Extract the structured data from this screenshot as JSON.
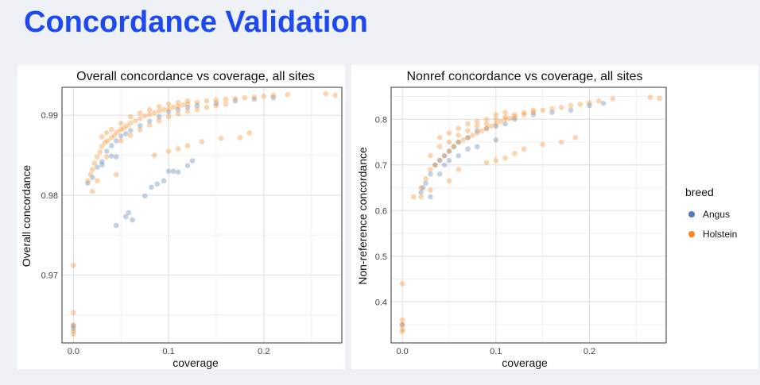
{
  "slide": {
    "title": "Concordance Validation"
  },
  "colors": {
    "Angus": "#4f7fb3",
    "Holstein": "#f7861c",
    "title": "#1f49f0"
  },
  "chart_data": [
    {
      "type": "scatter",
      "title": "Overall concordance vs coverage, all sites",
      "xlabel": "coverage",
      "ylabel": "Overall concordance",
      "xlim": [
        -0.012,
        0.282
      ],
      "ylim": [
        0.9615,
        0.9935
      ],
      "xticks": [
        0.0,
        0.1,
        0.2
      ],
      "xtick_labels": [
        "0.0",
        "0.1",
        "0.2"
      ],
      "yticks": [
        0.97,
        0.98,
        0.99
      ],
      "ytick_labels": [
        "0.97",
        "0.98",
        "0.99"
      ],
      "grid": true,
      "series": [
        {
          "name": "Angus",
          "color": "#4f7fb3",
          "points": [
            [
              0.0,
              0.9637
            ],
            [
              0.0,
              0.9633
            ],
            [
              0.015,
              0.9815
            ],
            [
              0.02,
              0.9822
            ],
            [
              0.025,
              0.9835
            ],
            [
              0.03,
              0.9842
            ],
            [
              0.035,
              0.9855
            ],
            [
              0.04,
              0.9862
            ],
            [
              0.045,
              0.9868
            ],
            [
              0.05,
              0.9874
            ],
            [
              0.055,
              0.9877
            ],
            [
              0.06,
              0.9881
            ],
            [
              0.07,
              0.9887
            ],
            [
              0.08,
              0.9893
            ],
            [
              0.09,
              0.9898
            ],
            [
              0.1,
              0.9904
            ],
            [
              0.11,
              0.9907
            ],
            [
              0.12,
              0.991
            ],
            [
              0.13,
              0.9912
            ],
            [
              0.15,
              0.9915
            ],
            [
              0.17,
              0.9918
            ],
            [
              0.19,
              0.992
            ],
            [
              0.21,
              0.9922
            ],
            [
              0.045,
              0.9762
            ],
            [
              0.055,
              0.9773
            ],
            [
              0.058,
              0.9778
            ],
            [
              0.062,
              0.9769
            ],
            [
              0.075,
              0.9799
            ],
            [
              0.082,
              0.981
            ],
            [
              0.088,
              0.9814
            ],
            [
              0.095,
              0.9818
            ],
            [
              0.1,
              0.983
            ],
            [
              0.105,
              0.983
            ],
            [
              0.11,
              0.9829
            ],
            [
              0.12,
              0.9837
            ],
            [
              0.125,
              0.9843
            ],
            [
              0.03,
              0.9838
            ],
            [
              0.04,
              0.9849
            ],
            [
              0.045,
              0.9848
            ]
          ]
        },
        {
          "name": "Holstein",
          "color": "#f7861c",
          "points": [
            [
              0.0,
              0.9712
            ],
            [
              0.0,
              0.9653
            ],
            [
              0.0,
              0.9637
            ],
            [
              0.0,
              0.963
            ],
            [
              0.0,
              0.9626
            ],
            [
              0.015,
              0.9818
            ],
            [
              0.018,
              0.9826
            ],
            [
              0.02,
              0.9832
            ],
            [
              0.022,
              0.984
            ],
            [
              0.025,
              0.9848
            ],
            [
              0.028,
              0.9854
            ],
            [
              0.03,
              0.9861
            ],
            [
              0.033,
              0.9866
            ],
            [
              0.036,
              0.9868
            ],
            [
              0.04,
              0.9872
            ],
            [
              0.043,
              0.9875
            ],
            [
              0.046,
              0.9879
            ],
            [
              0.05,
              0.9882
            ],
            [
              0.053,
              0.9884
            ],
            [
              0.056,
              0.9887
            ],
            [
              0.06,
              0.989
            ],
            [
              0.065,
              0.9893
            ],
            [
              0.07,
              0.9896
            ],
            [
              0.075,
              0.9899
            ],
            [
              0.08,
              0.9901
            ],
            [
              0.085,
              0.9903
            ],
            [
              0.09,
              0.9905
            ],
            [
              0.095,
              0.9907
            ],
            [
              0.1,
              0.9908
            ],
            [
              0.105,
              0.991
            ],
            [
              0.11,
              0.9911
            ],
            [
              0.115,
              0.9913
            ],
            [
              0.12,
              0.9914
            ],
            [
              0.13,
              0.9916
            ],
            [
              0.14,
              0.9918
            ],
            [
              0.15,
              0.9919
            ],
            [
              0.16,
              0.992
            ],
            [
              0.17,
              0.9921
            ],
            [
              0.18,
              0.9922
            ],
            [
              0.19,
              0.9923
            ],
            [
              0.2,
              0.9924
            ],
            [
              0.21,
              0.9925
            ],
            [
              0.225,
              0.9926
            ],
            [
              0.265,
              0.9927
            ],
            [
              0.275,
              0.9925
            ],
            [
              0.05,
              0.9868
            ],
            [
              0.06,
              0.9875
            ],
            [
              0.07,
              0.9882
            ],
            [
              0.08,
              0.9888
            ],
            [
              0.09,
              0.9893
            ],
            [
              0.1,
              0.9898
            ],
            [
              0.11,
              0.9902
            ],
            [
              0.12,
              0.9905
            ],
            [
              0.13,
              0.9907
            ],
            [
              0.14,
              0.991
            ],
            [
              0.15,
              0.9912
            ],
            [
              0.16,
              0.9914
            ],
            [
              0.06,
              0.9898
            ],
            [
              0.07,
              0.9903
            ],
            [
              0.08,
              0.9907
            ],
            [
              0.09,
              0.9911
            ],
            [
              0.1,
              0.9914
            ],
            [
              0.11,
              0.9916
            ],
            [
              0.12,
              0.9918
            ],
            [
              0.04,
              0.9882
            ],
            [
              0.05,
              0.989
            ],
            [
              0.03,
              0.9873
            ],
            [
              0.035,
              0.9878
            ],
            [
              0.085,
              0.985
            ],
            [
              0.1,
              0.9855
            ],
            [
              0.11,
              0.9858
            ],
            [
              0.12,
              0.9862
            ],
            [
              0.135,
              0.9867
            ],
            [
              0.155,
              0.9871
            ],
            [
              0.175,
              0.9872
            ],
            [
              0.185,
              0.9878
            ],
            [
              0.02,
              0.9805
            ],
            [
              0.025,
              0.9818
            ],
            [
              0.035,
              0.9848
            ],
            [
              0.045,
              0.9826
            ]
          ]
        }
      ]
    },
    {
      "type": "scatter",
      "title": "Nonref concordance vs coverage, all sites",
      "xlabel": "coverage",
      "ylabel": "Non-reference concordance",
      "xlim": [
        -0.012,
        0.282
      ],
      "ylim": [
        0.31,
        0.87
      ],
      "xticks": [
        0.0,
        0.1,
        0.2
      ],
      "xtick_labels": [
        "0.0",
        "0.1",
        "0.2"
      ],
      "yticks": [
        0.4,
        0.5,
        0.6,
        0.7,
        0.8
      ],
      "ytick_labels": [
        "0.4",
        "0.5",
        "0.6",
        "0.7",
        "0.8"
      ],
      "grid": true,
      "series": [
        {
          "name": "Angus",
          "color": "#4f7fb3",
          "points": [
            [
              0.02,
              0.64
            ],
            [
              0.022,
              0.65
            ],
            [
              0.025,
              0.66
            ],
            [
              0.03,
              0.68
            ],
            [
              0.035,
              0.7
            ],
            [
              0.04,
              0.71
            ],
            [
              0.045,
              0.72
            ],
            [
              0.05,
              0.73
            ],
            [
              0.055,
              0.74
            ],
            [
              0.06,
              0.75
            ],
            [
              0.07,
              0.76
            ],
            [
              0.08,
              0.775
            ],
            [
              0.09,
              0.78
            ],
            [
              0.1,
              0.785
            ],
            [
              0.11,
              0.79
            ],
            [
              0.12,
              0.8
            ],
            [
              0.14,
              0.81
            ],
            [
              0.16,
              0.815
            ],
            [
              0.18,
              0.82
            ],
            [
              0.2,
              0.83
            ],
            [
              0.215,
              0.835
            ],
            [
              0.03,
              0.63
            ],
            [
              0.04,
              0.68
            ],
            [
              0.045,
              0.7
            ],
            [
              0.05,
              0.71
            ],
            [
              0.06,
              0.72
            ],
            [
              0.07,
              0.735
            ],
            [
              0.08,
              0.74
            ],
            [
              0.1,
              0.755
            ],
            [
              0.0,
              0.35
            ]
          ]
        },
        {
          "name": "Holstein",
          "color": "#f7861c",
          "points": [
            [
              0.0,
              0.44
            ],
            [
              0.0,
              0.36
            ],
            [
              0.0,
              0.35
            ],
            [
              0.0,
              0.34
            ],
            [
              0.0,
              0.335
            ],
            [
              0.012,
              0.63
            ],
            [
              0.02,
              0.65
            ],
            [
              0.025,
              0.67
            ],
            [
              0.03,
              0.69
            ],
            [
              0.035,
              0.7
            ],
            [
              0.04,
              0.71
            ],
            [
              0.045,
              0.72
            ],
            [
              0.05,
              0.73
            ],
            [
              0.055,
              0.74
            ],
            [
              0.06,
              0.75
            ],
            [
              0.065,
              0.755
            ],
            [
              0.07,
              0.76
            ],
            [
              0.075,
              0.765
            ],
            [
              0.08,
              0.77
            ],
            [
              0.085,
              0.775
            ],
            [
              0.09,
              0.78
            ],
            [
              0.095,
              0.785
            ],
            [
              0.1,
              0.79
            ],
            [
              0.105,
              0.795
            ],
            [
              0.11,
              0.8
            ],
            [
              0.115,
              0.802
            ],
            [
              0.12,
              0.805
            ],
            [
              0.13,
              0.81
            ],
            [
              0.14,
              0.815
            ],
            [
              0.15,
              0.82
            ],
            [
              0.16,
              0.823
            ],
            [
              0.17,
              0.826
            ],
            [
              0.18,
              0.83
            ],
            [
              0.19,
              0.833
            ],
            [
              0.2,
              0.836
            ],
            [
              0.21,
              0.84
            ],
            [
              0.225,
              0.845
            ],
            [
              0.265,
              0.848
            ],
            [
              0.275,
              0.846
            ],
            [
              0.04,
              0.74
            ],
            [
              0.05,
              0.75
            ],
            [
              0.06,
              0.765
            ],
            [
              0.07,
              0.775
            ],
            [
              0.08,
              0.785
            ],
            [
              0.09,
              0.79
            ],
            [
              0.1,
              0.8
            ],
            [
              0.11,
              0.805
            ],
            [
              0.12,
              0.81
            ],
            [
              0.13,
              0.815
            ],
            [
              0.14,
              0.82
            ],
            [
              0.06,
              0.78
            ],
            [
              0.07,
              0.79
            ],
            [
              0.08,
              0.795
            ],
            [
              0.09,
              0.8
            ],
            [
              0.1,
              0.81
            ],
            [
              0.11,
              0.815
            ],
            [
              0.05,
              0.77
            ],
            [
              0.04,
              0.76
            ],
            [
              0.03,
              0.72
            ],
            [
              0.09,
              0.705
            ],
            [
              0.1,
              0.71
            ],
            [
              0.11,
              0.715
            ],
            [
              0.12,
              0.725
            ],
            [
              0.13,
              0.735
            ],
            [
              0.15,
              0.745
            ],
            [
              0.17,
              0.75
            ],
            [
              0.185,
              0.76
            ],
            [
              0.02,
              0.63
            ],
            [
              0.03,
              0.645
            ],
            [
              0.05,
              0.665
            ],
            [
              0.06,
              0.69
            ]
          ]
        }
      ]
    }
  ],
  "legend": {
    "title": "breed",
    "items": [
      {
        "label": "Angus",
        "color": "#4f7fb3"
      },
      {
        "label": "Holstein",
        "color": "#f7861c"
      }
    ]
  }
}
